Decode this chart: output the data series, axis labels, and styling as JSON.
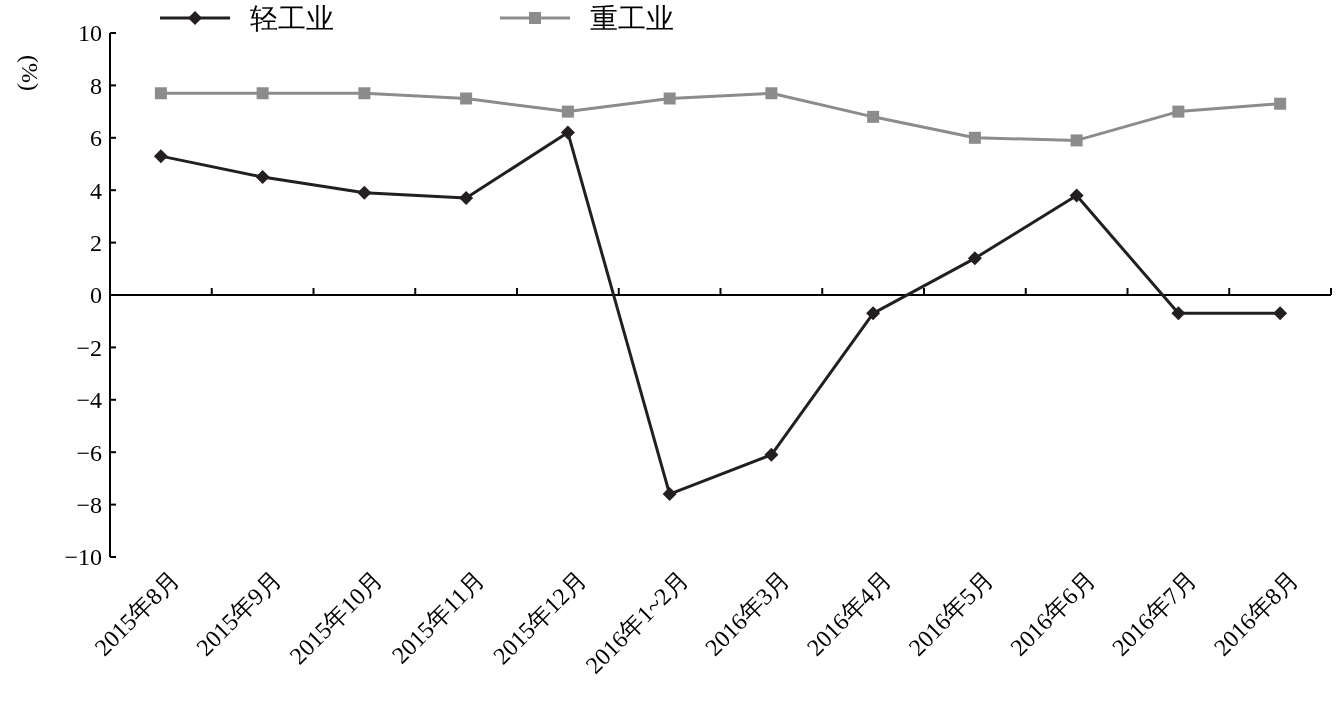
{
  "chart_data": {
    "type": "line",
    "ylabel": "(%)",
    "categories": [
      "2015年8月",
      "2015年9月",
      "2015年10月",
      "2015年11月",
      "2015年12月",
      "2016年1~2月",
      "2016年3月",
      "2016年4月",
      "2016年5月",
      "2016年6月",
      "2016年7月",
      "2016年8月"
    ],
    "series": [
      {
        "name": "轻工业",
        "color": "#231f20",
        "marker": "diamond",
        "values": [
          5.3,
          4.5,
          3.9,
          3.7,
          6.2,
          -7.6,
          -6.1,
          -0.7,
          1.4,
          3.8,
          -0.7,
          -0.7
        ]
      },
      {
        "name": "重工业",
        "color": "#8c8c8c",
        "marker": "square",
        "values": [
          7.7,
          7.7,
          7.7,
          7.5,
          7.0,
          7.5,
          7.7,
          6.8,
          6.0,
          5.9,
          7.0,
          7.3
        ]
      }
    ],
    "ylim": [
      -10,
      10
    ],
    "yticks": [
      {
        "value": -10,
        "label": "−10"
      },
      {
        "value": -8,
        "label": "−8"
      },
      {
        "value": -6,
        "label": "−6"
      },
      {
        "value": -4,
        "label": "−4"
      },
      {
        "value": -2,
        "label": "−2"
      },
      0,
      2,
      4,
      6,
      8,
      10
    ],
    "legend": "top left",
    "line_style": "solid"
  }
}
